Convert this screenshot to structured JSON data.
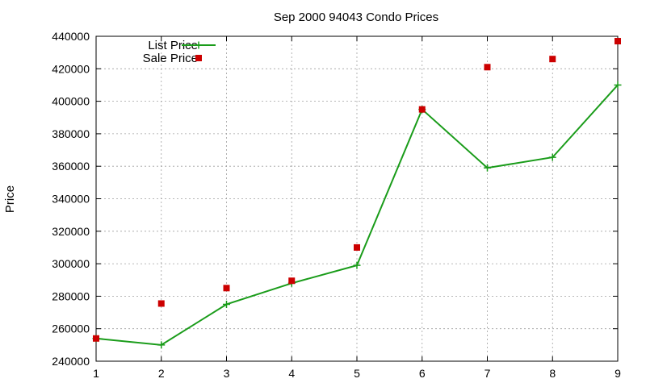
{
  "chart_data": {
    "type": "line",
    "title": "Sep 2000 94043 Condo Prices",
    "xlabel": "",
    "ylabel": "Price",
    "x": [
      1,
      2,
      3,
      4,
      5,
      6,
      7,
      8,
      9
    ],
    "xlim": [
      1,
      9
    ],
    "ylim": [
      240000,
      440000
    ],
    "xticks": [
      1,
      2,
      3,
      4,
      5,
      6,
      7,
      8,
      9
    ],
    "yticks": [
      240000,
      260000,
      280000,
      300000,
      320000,
      340000,
      360000,
      380000,
      400000,
      420000,
      440000
    ],
    "grid": true,
    "legend_position": "top-left",
    "series": [
      {
        "name": "List Price",
        "style": "line+cross",
        "color": "#1a9c1a",
        "values": [
          254000,
          250000,
          275000,
          288000,
          299000,
          395000,
          359000,
          365500,
          410000
        ]
      },
      {
        "name": "Sale Price",
        "style": "square",
        "color": "#cc0000",
        "values": [
          254000,
          275500,
          285000,
          289500,
          310000,
          395000,
          421000,
          426000,
          437000
        ]
      }
    ]
  }
}
